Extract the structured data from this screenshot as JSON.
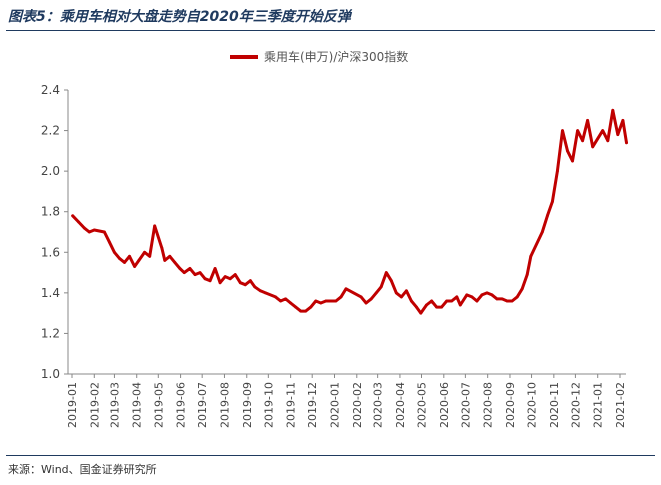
{
  "figure": {
    "title": "图表5：乘用车相对大盘走势自2020年三季度开始反弹",
    "source": "来源：Wind、国金证券研究所"
  },
  "chart_data": {
    "type": "line",
    "legend": "乘用车(申万)/沪深300指数",
    "legend_position": "top-center",
    "grid": false,
    "series_color": "#c00000",
    "ylim": [
      1.0,
      2.4
    ],
    "yticks": [
      "1.0",
      "1.2",
      "1.4",
      "1.6",
      "1.8",
      "2.0",
      "2.2",
      "2.4"
    ],
    "xticks": [
      "2019-01",
      "2019-02",
      "2019-03",
      "2019-04",
      "2019-05",
      "2019-06",
      "2019-07",
      "2019-08",
      "2019-09",
      "2019-10",
      "2019-11",
      "2019-12",
      "2020-01",
      "2020-02",
      "2020-03",
      "2020-04",
      "2020-05",
      "2020-06",
      "2020-07",
      "2020-08",
      "2020-09",
      "2020-10",
      "2020-11",
      "2020-12",
      "2021-01",
      "2021-02"
    ],
    "series": [
      {
        "name": "乘用车(申万)/沪深300指数",
        "x": [
          "2019-01-02",
          "2019-01-10",
          "2019-01-18",
          "2019-01-25",
          "2019-02-01",
          "2019-02-15",
          "2019-02-22",
          "2019-03-01",
          "2019-03-08",
          "2019-03-15",
          "2019-03-22",
          "2019-03-29",
          "2019-04-04",
          "2019-04-12",
          "2019-04-19",
          "2019-04-26",
          "2019-05-06",
          "2019-05-10",
          "2019-05-17",
          "2019-05-24",
          "2019-05-31",
          "2019-06-06",
          "2019-06-14",
          "2019-06-21",
          "2019-06-28",
          "2019-07-05",
          "2019-07-12",
          "2019-07-19",
          "2019-07-26",
          "2019-08-02",
          "2019-08-09",
          "2019-08-16",
          "2019-08-23",
          "2019-08-30",
          "2019-09-06",
          "2019-09-12",
          "2019-09-20",
          "2019-09-27",
          "2019-10-11",
          "2019-10-18",
          "2019-10-25",
          "2019-11-01",
          "2019-11-08",
          "2019-11-15",
          "2019-11-22",
          "2019-11-29",
          "2019-12-06",
          "2019-12-13",
          "2019-12-20",
          "2019-12-27",
          "2020-01-03",
          "2020-01-10",
          "2020-01-17",
          "2020-02-07",
          "2020-02-14",
          "2020-02-21",
          "2020-02-28",
          "2020-03-06",
          "2020-03-13",
          "2020-03-20",
          "2020-03-27",
          "2020-04-03",
          "2020-04-10",
          "2020-04-17",
          "2020-04-24",
          "2020-04-30",
          "2020-05-08",
          "2020-05-15",
          "2020-05-22",
          "2020-05-29",
          "2020-06-05",
          "2020-06-12",
          "2020-06-19",
          "2020-06-24",
          "2020-07-03",
          "2020-07-10",
          "2020-07-17",
          "2020-07-24",
          "2020-07-31",
          "2020-08-07",
          "2020-08-14",
          "2020-08-21",
          "2020-08-28",
          "2020-09-04",
          "2020-09-11",
          "2020-09-18",
          "2020-09-25",
          "2020-09-30",
          "2020-10-16",
          "2020-10-23",
          "2020-10-30",
          "2020-11-06",
          "2020-11-13",
          "2020-11-20",
          "2020-11-27",
          "2020-12-04",
          "2020-12-11",
          "2020-12-18",
          "2020-12-25",
          "2021-01-08",
          "2021-01-15",
          "2021-01-22",
          "2021-01-29",
          "2021-02-05",
          "2021-02-10"
        ],
        "values": [
          1.78,
          1.75,
          1.72,
          1.7,
          1.71,
          1.7,
          1.65,
          1.6,
          1.57,
          1.55,
          1.58,
          1.53,
          1.56,
          1.6,
          1.58,
          1.73,
          1.62,
          1.56,
          1.58,
          1.55,
          1.52,
          1.5,
          1.52,
          1.49,
          1.5,
          1.47,
          1.46,
          1.52,
          1.45,
          1.48,
          1.47,
          1.49,
          1.45,
          1.44,
          1.46,
          1.43,
          1.41,
          1.4,
          1.38,
          1.36,
          1.37,
          1.35,
          1.33,
          1.31,
          1.31,
          1.33,
          1.36,
          1.35,
          1.36,
          1.36,
          1.36,
          1.38,
          1.42,
          1.38,
          1.35,
          1.37,
          1.4,
          1.43,
          1.5,
          1.46,
          1.4,
          1.38,
          1.41,
          1.36,
          1.33,
          1.3,
          1.34,
          1.36,
          1.33,
          1.33,
          1.36,
          1.36,
          1.38,
          1.34,
          1.39,
          1.38,
          1.36,
          1.39,
          1.4,
          1.39,
          1.37,
          1.37,
          1.36,
          1.36,
          1.38,
          1.42,
          1.49,
          1.58,
          1.7,
          1.78,
          1.85,
          2.0,
          2.2,
          2.1,
          2.05,
          2.2,
          2.15,
          2.25,
          2.12,
          2.2,
          2.15,
          2.3,
          2.18,
          2.25,
          2.14
        ]
      }
    ]
  }
}
